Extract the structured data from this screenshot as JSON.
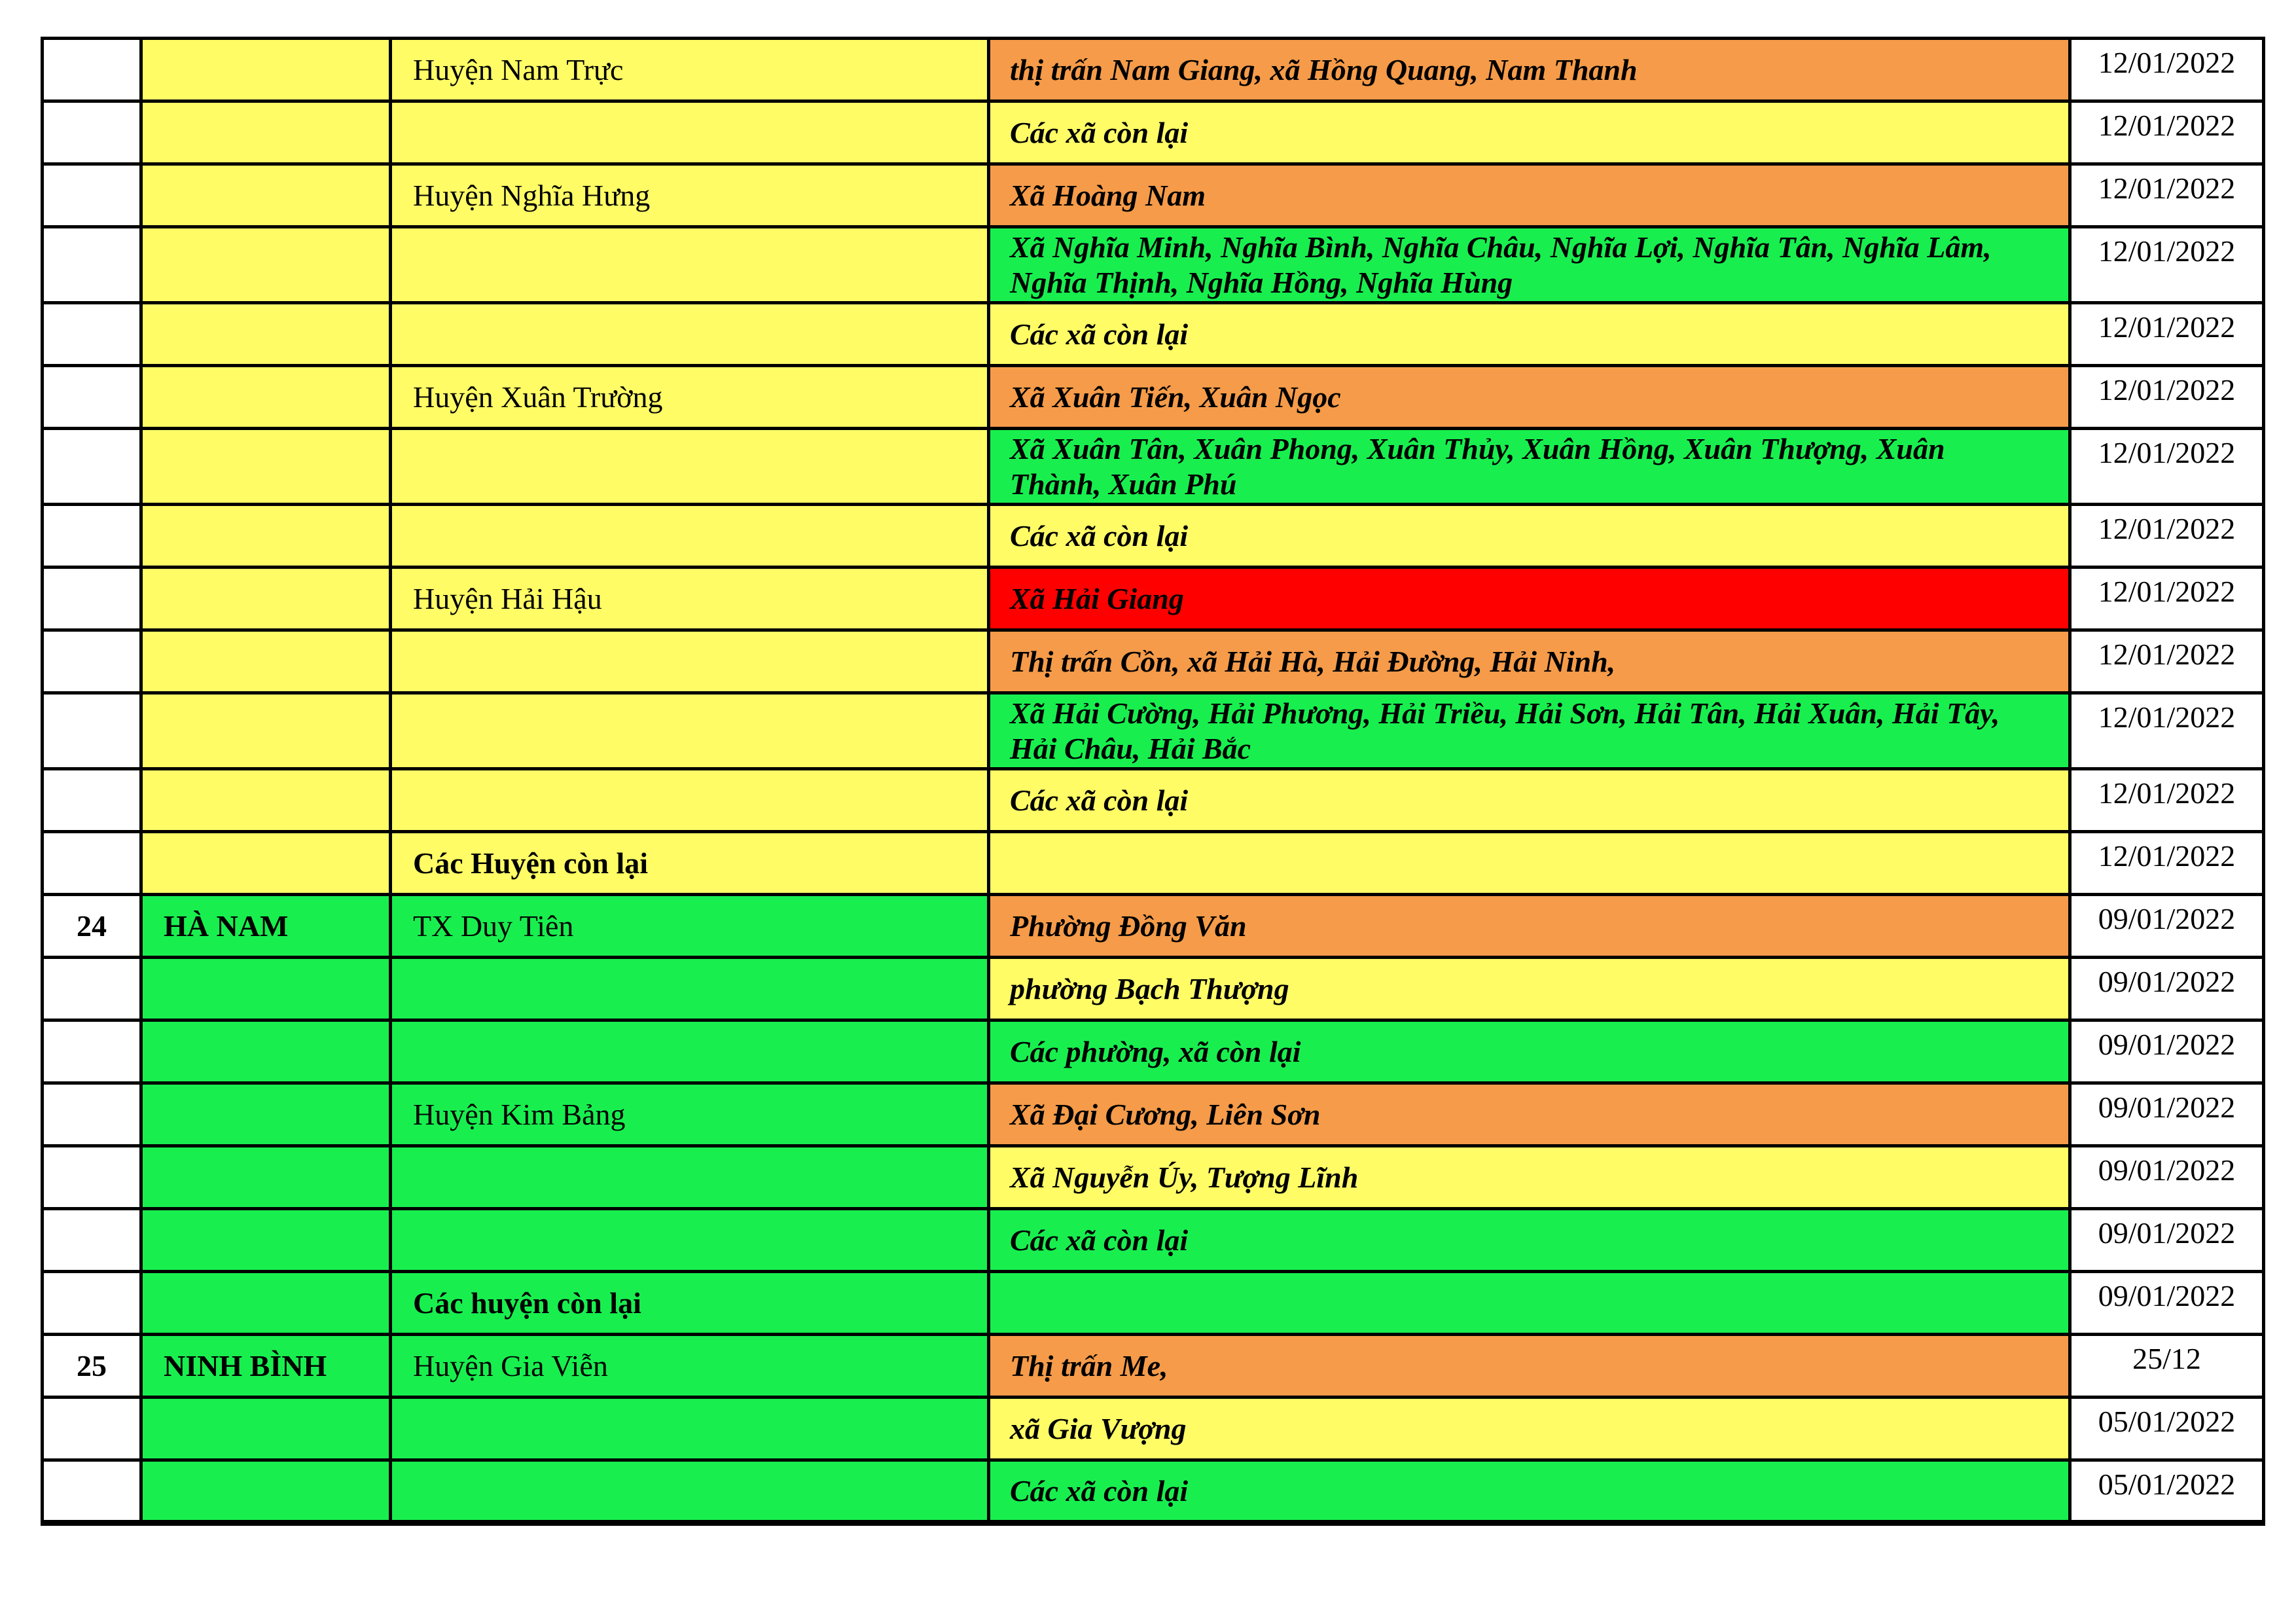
{
  "palette": {
    "yellow": "#FFFC66",
    "orange": "#F59B49",
    "green": "#18EF4F",
    "red": "#FF0000",
    "border": "#000000",
    "text": "#000000"
  },
  "table": {
    "rows": [
      {
        "no": "",
        "province": "",
        "province_color": "yellow",
        "district": "Huyện Nam Trực",
        "district_bold": false,
        "district_color": "yellow",
        "commune": "thị trấn Nam Giang, xã Hồng Quang, Nam Thanh",
        "commune_color": "orange",
        "date": "12/01/2022",
        "tall": false
      },
      {
        "no": "",
        "province": "",
        "province_color": "yellow",
        "district": "",
        "district_bold": false,
        "district_color": "yellow",
        "commune": "Các xã còn lại",
        "commune_color": "yellow",
        "date": "12/01/2022",
        "tall": false
      },
      {
        "no": "",
        "province": "",
        "province_color": "yellow",
        "district": "Huyện Nghĩa Hưng",
        "district_bold": false,
        "district_color": "yellow",
        "commune": "Xã Hoàng Nam",
        "commune_color": "orange",
        "date": "12/01/2022",
        "tall": false
      },
      {
        "no": "",
        "province": "",
        "province_color": "yellow",
        "district": "",
        "district_bold": false,
        "district_color": "yellow",
        "commune": "Xã Nghĩa Minh, Nghĩa Bình, Nghĩa Châu, Nghĩa Lợi, Nghĩa Tân, Nghĩa Lâm, Nghĩa Thịnh, Nghĩa Hồng, Nghĩa Hùng",
        "commune_color": "green",
        "date": "12/01/2022",
        "tall": true
      },
      {
        "no": "",
        "province": "",
        "province_color": "yellow",
        "district": "",
        "district_bold": false,
        "district_color": "yellow",
        "commune": "Các xã còn lại",
        "commune_color": "yellow",
        "date": "12/01/2022",
        "tall": false
      },
      {
        "no": "",
        "province": "",
        "province_color": "yellow",
        "district": "Huyện Xuân Trường",
        "district_bold": false,
        "district_color": "yellow",
        "commune": "Xã Xuân Tiến, Xuân Ngọc",
        "commune_color": "orange",
        "date": "12/01/2022",
        "tall": false
      },
      {
        "no": "",
        "province": "",
        "province_color": "yellow",
        "district": "",
        "district_bold": false,
        "district_color": "yellow",
        "commune": "Xã Xuân Tân, Xuân Phong, Xuân Thủy, Xuân Hồng, Xuân Thượng, Xuân Thành, Xuân Phú",
        "commune_color": "green",
        "date": "12/01/2022",
        "tall": true
      },
      {
        "no": "",
        "province": "",
        "province_color": "yellow",
        "district": "",
        "district_bold": false,
        "district_color": "yellow",
        "commune": "Các xã còn lại",
        "commune_color": "yellow",
        "date": "12/01/2022",
        "tall": false
      },
      {
        "no": "",
        "province": "",
        "province_color": "yellow",
        "district": "Huyện Hải Hậu",
        "district_bold": false,
        "district_color": "yellow",
        "commune": "Xã Hải Giang",
        "commune_color": "red",
        "date": "12/01/2022",
        "tall": false
      },
      {
        "no": "",
        "province": "",
        "province_color": "yellow",
        "district": "",
        "district_bold": false,
        "district_color": "yellow",
        "commune": "Thị trấn Cồn, xã Hải Hà, Hải Đường, Hải Ninh,",
        "commune_color": "orange",
        "date": "12/01/2022",
        "tall": false
      },
      {
        "no": "",
        "province": "",
        "province_color": "yellow",
        "district": "",
        "district_bold": false,
        "district_color": "yellow",
        "commune": "Xã Hải Cường, Hải Phương, Hải Triều, Hải Sơn, Hải Tân, Hải Xuân, Hải Tây, Hải Châu, Hải Bắc",
        "commune_color": "green",
        "date": "12/01/2022",
        "tall": true
      },
      {
        "no": "",
        "province": "",
        "province_color": "yellow",
        "district": "",
        "district_bold": false,
        "district_color": "yellow",
        "commune": "Các xã còn lại",
        "commune_color": "yellow",
        "date": "12/01/2022",
        "tall": false
      },
      {
        "no": "",
        "province": "",
        "province_color": "yellow",
        "district": "Các Huyện còn lại",
        "district_bold": true,
        "district_color": "yellow",
        "commune": "",
        "commune_color": "yellow",
        "date": "12/01/2022",
        "tall": false
      },
      {
        "no": "24",
        "province": "HÀ NAM",
        "province_color": "green",
        "district": "TX Duy Tiên",
        "district_bold": false,
        "district_color": "green",
        "commune": "Phường Đồng Văn",
        "commune_color": "orange",
        "date": "09/01/2022",
        "tall": false
      },
      {
        "no": "",
        "province": "",
        "province_color": "green",
        "district": "",
        "district_bold": false,
        "district_color": "green",
        "commune": "phường Bạch Thượng",
        "commune_color": "yellow",
        "date": "09/01/2022",
        "tall": false
      },
      {
        "no": "",
        "province": "",
        "province_color": "green",
        "district": "",
        "district_bold": false,
        "district_color": "green",
        "commune": "Các phường, xã còn lại",
        "commune_color": "green",
        "date": "09/01/2022",
        "tall": false
      },
      {
        "no": "",
        "province": "",
        "province_color": "green",
        "district": "Huyện Kim Bảng",
        "district_bold": false,
        "district_color": "green",
        "commune": "Xã Đại Cương, Liên Sơn",
        "commune_color": "orange",
        "date": "09/01/2022",
        "tall": false
      },
      {
        "no": "",
        "province": "",
        "province_color": "green",
        "district": "",
        "district_bold": false,
        "district_color": "green",
        "commune": "Xã Nguyễn Úy, Tượng Lĩnh",
        "commune_color": "yellow",
        "date": "09/01/2022",
        "tall": false
      },
      {
        "no": "",
        "province": "",
        "province_color": "green",
        "district": "",
        "district_bold": false,
        "district_color": "green",
        "commune": "Các xã còn lại",
        "commune_color": "green",
        "date": "09/01/2022",
        "tall": false
      },
      {
        "no": "",
        "province": "",
        "province_color": "green",
        "district": "Các huyện còn lại",
        "district_bold": true,
        "district_color": "green",
        "commune": "",
        "commune_color": "green",
        "date": "09/01/2022",
        "tall": false
      },
      {
        "no": "25",
        "province": "NINH BÌNH",
        "province_color": "green",
        "district": "Huyện Gia Viễn",
        "district_bold": false,
        "district_color": "green",
        "commune": "Thị trấn Me,",
        "commune_color": "orange",
        "date": "25/12",
        "tall": false
      },
      {
        "no": "",
        "province": "",
        "province_color": "green",
        "district": "",
        "district_bold": false,
        "district_color": "green",
        "commune": "xã Gia Vượng",
        "commune_color": "yellow",
        "date": "05/01/2022",
        "tall": false
      },
      {
        "no": "",
        "province": "",
        "province_color": "green",
        "district": "",
        "district_bold": false,
        "district_color": "green",
        "commune": "Các xã còn lại",
        "commune_color": "green",
        "date": "05/01/2022",
        "tall": false
      }
    ]
  }
}
